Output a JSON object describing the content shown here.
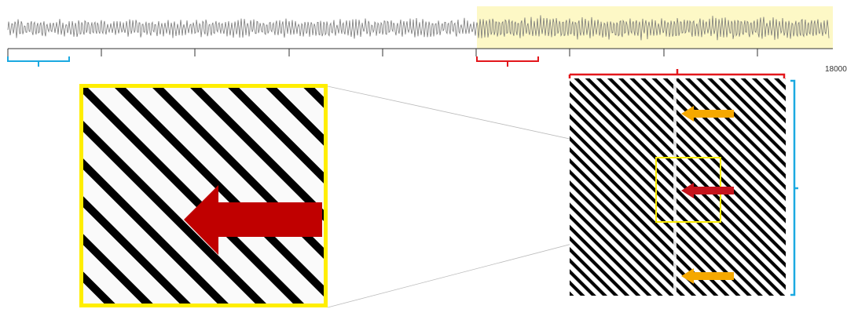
{
  "timeline": {
    "end_tick_label": "18000"
  }
}
